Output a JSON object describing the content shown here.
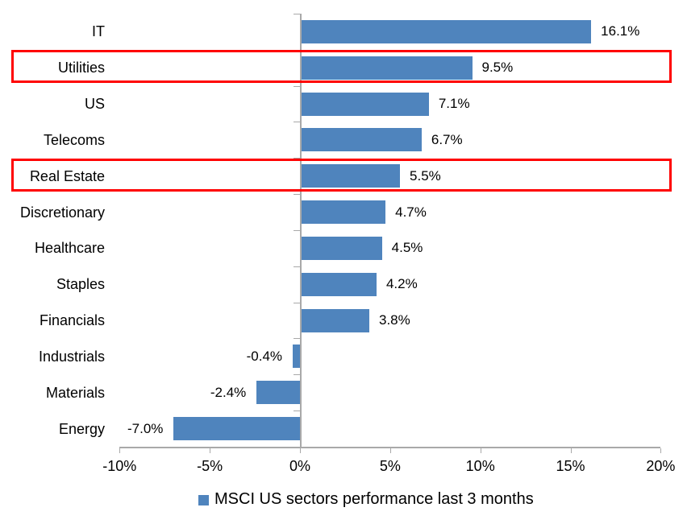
{
  "chart_data": {
    "type": "bar",
    "orientation": "horizontal",
    "categories": [
      "IT",
      "Utilities",
      "US",
      "Telecoms",
      "Real Estate",
      "Discretionary",
      "Healthcare",
      "Staples",
      "Financials",
      "Industrials",
      "Materials",
      "Energy"
    ],
    "values": [
      16.1,
      9.5,
      7.1,
      6.7,
      5.5,
      4.7,
      4.5,
      4.2,
      3.8,
      -0.4,
      -2.4,
      -7.0
    ],
    "data_labels": [
      "16.1%",
      "9.5%",
      "7.1%",
      "6.7%",
      "5.5%",
      "4.7%",
      "4.5%",
      "4.2%",
      "3.8%",
      "-0.4%",
      "-2.4%",
      "-7.0%"
    ],
    "highlighted_categories": [
      "Utilities",
      "Real Estate"
    ],
    "x_ticks": [
      {
        "value": -10,
        "label": "-10%"
      },
      {
        "value": -5,
        "label": "-5%"
      },
      {
        "value": 0,
        "label": "0%"
      },
      {
        "value": 5,
        "label": "5%"
      },
      {
        "value": 10,
        "label": "10%"
      },
      {
        "value": 15,
        "label": "15%"
      },
      {
        "value": 20,
        "label": "20%"
      }
    ],
    "xlim": [
      -10,
      20
    ],
    "grid": false,
    "legend": "MSCI US sectors performance last 3 months",
    "legend_position": "bottom",
    "colors": {
      "bar": "#4F84BD",
      "highlight_border": "#FF0000",
      "axis": "#A9A9A9",
      "text": "#000000"
    }
  }
}
